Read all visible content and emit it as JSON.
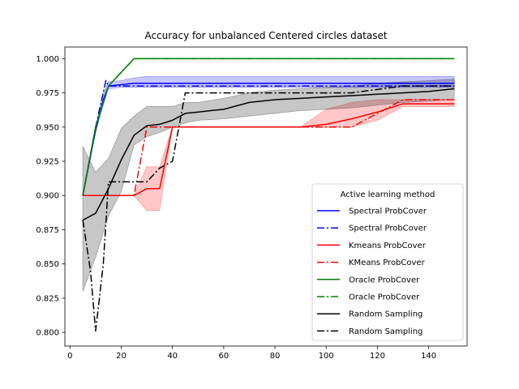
{
  "chart_data": {
    "type": "line",
    "title": "Accuracy for unbalanced Centered circles dataset",
    "xlabel": "",
    "ylabel": "",
    "xlim": [
      -2,
      155
    ],
    "ylim": [
      0.79,
      1.0085
    ],
    "xticks": [
      0,
      20,
      40,
      60,
      80,
      100,
      120,
      140
    ],
    "xtick_labels": [
      "0",
      "20",
      "40",
      "60",
      "80",
      "100",
      "120",
      "140"
    ],
    "yticks": [
      0.8,
      0.825,
      0.85,
      0.875,
      0.9,
      0.925,
      0.95,
      0.975,
      1.0
    ],
    "ytick_labels": [
      "0.800",
      "0.825",
      "0.850",
      "0.875",
      "0.900",
      "0.925",
      "0.950",
      "0.975",
      "1.000"
    ],
    "grid": false,
    "legend": {
      "title": "Active learning method",
      "placement": "lower right"
    },
    "series": [
      {
        "name": "Spectral ProbCover",
        "color": "#0000ff",
        "style": "solid",
        "x": [
          5,
          10,
          13,
          15,
          20,
          25,
          30,
          40,
          50,
          60,
          80,
          100,
          120,
          150
        ],
        "y": [
          0.9,
          0.948,
          0.97,
          0.98,
          0.981,
          0.982,
          0.982,
          0.982,
          0.982,
          0.982,
          0.982,
          0.982,
          0.982,
          0.982
        ],
        "band_low": [
          0.9,
          0.946,
          0.966,
          0.978,
          0.979,
          0.979,
          0.979,
          0.979,
          0.979,
          0.979,
          0.979,
          0.979,
          0.979,
          0.979
        ],
        "band_high": [
          0.9,
          0.95,
          0.975,
          0.983,
          0.984,
          0.986,
          0.987,
          0.987,
          0.987,
          0.987,
          0.987,
          0.987,
          0.987,
          0.987
        ]
      },
      {
        "name": "Spectral ProbCover",
        "color": "#0000ff",
        "style": "dashdot",
        "x": [
          5,
          10,
          14,
          15,
          20,
          25,
          150
        ],
        "y": [
          0.9,
          0.95,
          0.984,
          0.98,
          0.98,
          0.98,
          0.98
        ]
      },
      {
        "name": "Kmeans ProbCover",
        "color": "#ff0000",
        "style": "solid",
        "x": [
          5,
          10,
          15,
          20,
          25,
          30,
          35,
          40,
          45,
          50,
          60,
          70,
          80,
          90,
          100,
          110,
          120,
          130,
          140,
          150
        ],
        "y": [
          0.9,
          0.9,
          0.9,
          0.9,
          0.9,
          0.905,
          0.905,
          0.95,
          0.95,
          0.95,
          0.95,
          0.95,
          0.95,
          0.95,
          0.952,
          0.956,
          0.961,
          0.967,
          0.967,
          0.967
        ],
        "band_low": [
          0.9,
          0.9,
          0.9,
          0.9,
          0.9,
          0.889,
          0.889,
          0.95,
          0.95,
          0.95,
          0.95,
          0.95,
          0.95,
          0.95,
          0.95,
          0.95,
          0.955,
          0.965,
          0.965,
          0.965
        ],
        "band_high": [
          0.9,
          0.9,
          0.9,
          0.9,
          0.9,
          0.921,
          0.921,
          0.95,
          0.95,
          0.95,
          0.95,
          0.95,
          0.95,
          0.95,
          0.963,
          0.968,
          0.97,
          0.97,
          0.97,
          0.97
        ]
      },
      {
        "name": "KMeans ProbCover",
        "color": "#ff0000",
        "style": "dashdot",
        "x": [
          5,
          20,
          25,
          30,
          40,
          50,
          70,
          90,
          100,
          110,
          120,
          130,
          150
        ],
        "y": [
          0.9,
          0.9,
          0.9,
          0.95,
          0.95,
          0.95,
          0.95,
          0.95,
          0.95,
          0.95,
          0.96,
          0.97,
          0.97
        ]
      },
      {
        "name": "Oracle ProbCover",
        "color": "#008000",
        "style": "solid",
        "x": [
          5,
          10,
          15,
          20,
          25,
          30,
          150
        ],
        "y": [
          0.9,
          0.95,
          0.98,
          0.99,
          1.0,
          1.0,
          1.0
        ]
      },
      {
        "name": "Oracle ProbCover",
        "color": "#008000",
        "style": "dashdot",
        "x": [
          5,
          10,
          15,
          20,
          25,
          30,
          150
        ],
        "y": [
          0.9,
          0.95,
          0.98,
          0.99,
          1.0,
          1.0,
          1.0
        ]
      },
      {
        "name": "Random Sampling",
        "color": "#000000",
        "style": "solid",
        "x": [
          5,
          10,
          15,
          20,
          25,
          30,
          35,
          40,
          45,
          50,
          60,
          70,
          80,
          90,
          100,
          110,
          120,
          130,
          140,
          150
        ],
        "y": [
          0.882,
          0.887,
          0.905,
          0.926,
          0.944,
          0.951,
          0.952,
          0.955,
          0.96,
          0.961,
          0.963,
          0.968,
          0.97,
          0.971,
          0.972,
          0.973,
          0.974,
          0.975,
          0.976,
          0.978
        ],
        "band_low": [
          0.83,
          0.855,
          0.885,
          0.903,
          0.937,
          0.943,
          0.946,
          0.95,
          0.953,
          0.955,
          0.956,
          0.958,
          0.96,
          0.962,
          0.963,
          0.964,
          0.966,
          0.968,
          0.969,
          0.97
        ],
        "band_high": [
          0.936,
          0.917,
          0.927,
          0.949,
          0.958,
          0.965,
          0.965,
          0.965,
          0.968,
          0.968,
          0.971,
          0.975,
          0.977,
          0.978,
          0.979,
          0.98,
          0.982,
          0.983,
          0.984,
          0.985
        ]
      },
      {
        "name": "Random Sampling",
        "color": "#000000",
        "style": "dashdot",
        "x": [
          5,
          8,
          10,
          13,
          15,
          20,
          25,
          30,
          35,
          40,
          45,
          50,
          70,
          90,
          110,
          130,
          150
        ],
        "y": [
          0.882,
          0.845,
          0.801,
          0.85,
          0.91,
          0.91,
          0.91,
          0.91,
          0.92,
          0.925,
          0.975,
          0.975,
          0.975,
          0.975,
          0.975,
          0.98,
          0.98
        ]
      }
    ]
  }
}
